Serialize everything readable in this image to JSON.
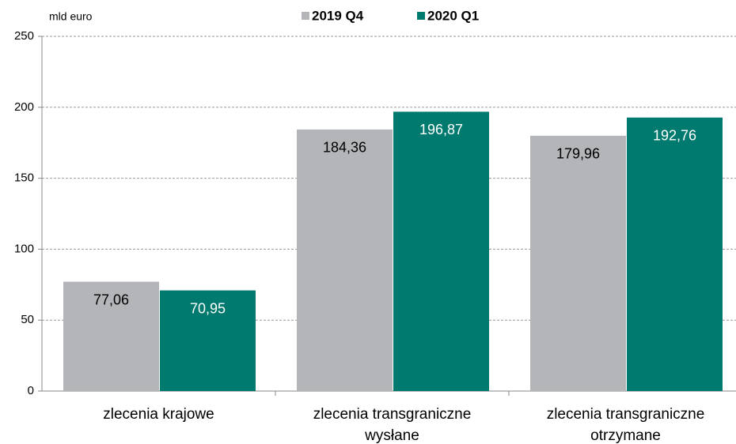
{
  "chart_data": {
    "type": "bar",
    "y_axis_label": "mld euro",
    "categories": [
      [
        "zlecenia krajowe"
      ],
      [
        "zlecenia transgraniczne",
        "wysłane"
      ],
      [
        "zlecenia transgraniczne",
        "otrzymane"
      ]
    ],
    "series": [
      {
        "name": "2019 Q4",
        "color": "#b3b5b8",
        "label_color": "#000000",
        "values": [
          77.06,
          184.36,
          179.96
        ],
        "value_labels": [
          "77,06",
          "184,36",
          "179,96"
        ]
      },
      {
        "name": "2020 Q1",
        "color": "#007a6e",
        "label_color": "#ffffff",
        "values": [
          70.95,
          196.87,
          192.76
        ],
        "value_labels": [
          "70,95",
          "196,87",
          "192,76"
        ]
      }
    ],
    "ylim": [
      0,
      250
    ],
    "yticks": [
      0,
      50,
      100,
      150,
      200,
      250
    ],
    "grid": true
  }
}
